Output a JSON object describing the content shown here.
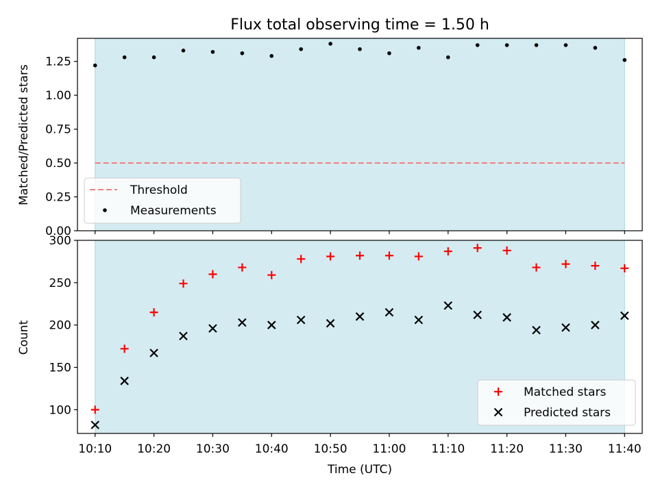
{
  "chart_data": [
    {
      "type": "scatter",
      "title": "Flux total observing time = 1.50 h",
      "xlabel": "",
      "ylabel": "Matched/Predicted stars",
      "xlim": [
        "10:07",
        "11:43"
      ],
      "ylim": [
        0,
        1.42
      ],
      "xticks": [
        "10:10",
        "10:20",
        "10:30",
        "10:40",
        "10:50",
        "11:00",
        "11:10",
        "11:20",
        "11:30",
        "11:40"
      ],
      "yticks": [
        "0.00",
        "0.25",
        "0.50",
        "0.75",
        "1.00",
        "1.25"
      ],
      "shaded_span": [
        "10:10",
        "11:40"
      ],
      "legend": {
        "position": "lower-left",
        "entries": [
          "Threshold",
          "Measurements"
        ]
      },
      "threshold": {
        "name": "Threshold",
        "value": 0.5,
        "color": "#f08080",
        "style": "dashed"
      },
      "series": [
        {
          "name": "Measurements",
          "color": "#000000",
          "marker": "dot",
          "x": [
            "10:10",
            "10:15",
            "10:20",
            "10:25",
            "10:30",
            "10:35",
            "10:40",
            "10:45",
            "10:50",
            "10:55",
            "11:00",
            "11:05",
            "11:10",
            "11:15",
            "11:20",
            "11:25",
            "11:30",
            "11:35",
            "11:40"
          ],
          "y": [
            1.22,
            1.28,
            1.28,
            1.33,
            1.32,
            1.31,
            1.29,
            1.34,
            1.38,
            1.34,
            1.31,
            1.35,
            1.28,
            1.37,
            1.37,
            1.37,
            1.37,
            1.35,
            1.26
          ]
        }
      ]
    },
    {
      "type": "scatter",
      "title": "",
      "xlabel": "Time (UTC)",
      "ylabel": "Count",
      "xlim": [
        "10:07",
        "11:43"
      ],
      "ylim": [
        72,
        300
      ],
      "xticks": [
        "10:10",
        "10:20",
        "10:30",
        "10:40",
        "10:50",
        "11:00",
        "11:10",
        "11:20",
        "11:30",
        "11:40"
      ],
      "yticks": [
        "100",
        "150",
        "200",
        "250",
        "300"
      ],
      "shaded_span": [
        "10:10",
        "11:40"
      ],
      "legend": {
        "position": "lower-right",
        "entries": [
          "Matched stars",
          "Predicted stars"
        ]
      },
      "series": [
        {
          "name": "Matched stars",
          "color": "#ff0000",
          "marker": "plus",
          "x": [
            "10:10",
            "10:15",
            "10:20",
            "10:25",
            "10:30",
            "10:35",
            "10:40",
            "10:45",
            "10:50",
            "10:55",
            "11:00",
            "11:05",
            "11:10",
            "11:15",
            "11:20",
            "11:25",
            "11:30",
            "11:35",
            "11:40"
          ],
          "y": [
            100,
            172,
            215,
            249,
            260,
            268,
            259,
            278,
            281,
            282,
            282,
            281,
            287,
            291,
            288,
            268,
            272,
            270,
            267
          ]
        },
        {
          "name": "Predicted stars",
          "color": "#000000",
          "marker": "x",
          "x": [
            "10:10",
            "10:15",
            "10:20",
            "10:25",
            "10:30",
            "10:35",
            "10:40",
            "10:45",
            "10:50",
            "10:55",
            "11:00",
            "11:05",
            "11:10",
            "11:15",
            "11:20",
            "11:25",
            "11:30",
            "11:35",
            "11:40"
          ],
          "y": [
            82,
            134,
            167,
            187,
            196,
            203,
            200,
            206,
            202,
            210,
            215,
            206,
            223,
            212,
            209,
            194,
            197,
            200,
            211
          ]
        }
      ]
    }
  ],
  "colors": {
    "shade": "#d4ebf1",
    "shade_edge": "#a8d4e0",
    "threshold": "#f08080"
  }
}
